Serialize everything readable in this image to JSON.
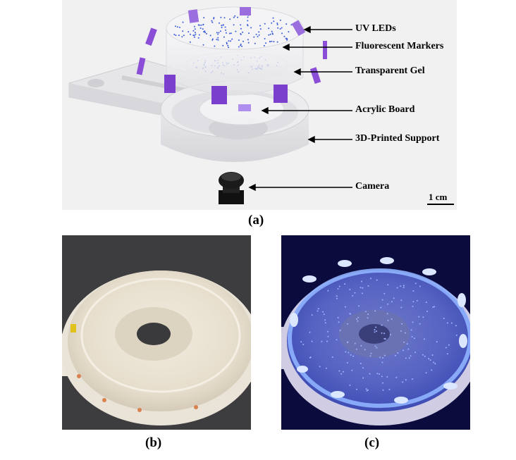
{
  "figure": {
    "panel_a": {
      "caption": "(a)",
      "labels": {
        "uv_leds": "UV LEDs",
        "fluorescent_markers": "Fluorescent Markers",
        "transparent_gel": "Transparent Gel",
        "acrylic_board": "Acrylic Board",
        "support": "3D-Printed Support",
        "camera": "Camera"
      },
      "scale_bar": "1 cm"
    },
    "panel_b": {
      "caption": "(b)"
    },
    "panel_c": {
      "caption": "(c)"
    }
  },
  "colors": {
    "led": "#8a4fd6",
    "marker_dot": "#3a5cd8",
    "glow": "#4b6bff"
  }
}
